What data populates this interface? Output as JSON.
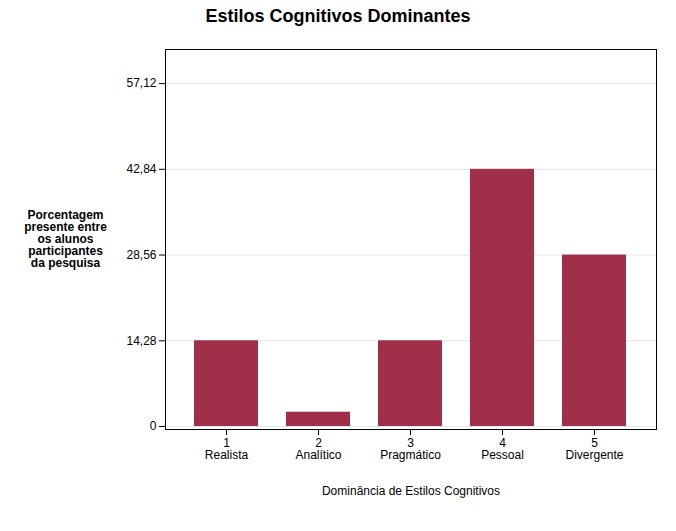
{
  "chart_data": {
    "type": "bar",
    "title": "Estilos Cognitivos Dominantes",
    "xlabel": "Dominância de Estilos Cognitivos",
    "ylabel": "Porcentagem\npresente entre\nos alunos\nparticipantes\nda pesquisa",
    "categories": [
      "1\nRealista",
      "2\nAnalítico",
      "3\nPragmático",
      "4\nPessoal",
      "5\nDivergente"
    ],
    "values": [
      14.28,
      2.38,
      14.28,
      42.84,
      28.56
    ],
    "color": "#A0304A",
    "ylim": [
      -0.5,
      62.8
    ],
    "yticks": [
      0,
      {
        "value": 14.28,
        "label": "14,28"
      },
      {
        "value": 28.56,
        "label": "28,56"
      },
      {
        "value": 42.84,
        "label": "42,84"
      },
      {
        "value": 57.12,
        "label": "57,12"
      }
    ],
    "grid": true
  }
}
